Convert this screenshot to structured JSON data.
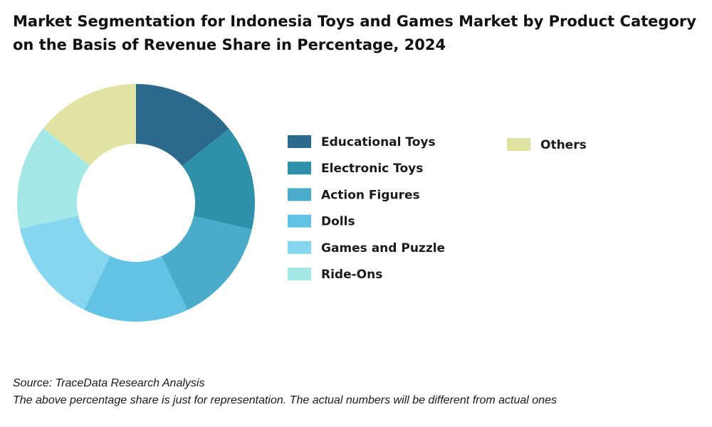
{
  "title_line1": "Market Segmentation for Indonesia Toys and Games Market by Product Category",
  "title_line2": "on the Basis of Revenue Share in Percentage, 2024",
  "source": "Source: TraceData Research Analysis",
  "note": "The above percentage share is just for representation. The actual numbers will be different from actual ones",
  "chart_data": {
    "type": "pie",
    "donut": true,
    "categories": [
      "Educational Toys",
      "Electronic Toys",
      "Action Figures",
      "Dolls",
      "Games and Puzzle",
      "Ride-Ons",
      "Others"
    ],
    "values": [
      14.3,
      14.3,
      14.3,
      14.3,
      14.3,
      14.3,
      14.2
    ],
    "colors": [
      "#2B6A8C",
      "#2F90AA",
      "#4AACCA",
      "#63C3E4",
      "#87D6F0",
      "#A3E8E6",
      "#E0E3A1"
    ],
    "legend": "right",
    "data_labels": false
  }
}
